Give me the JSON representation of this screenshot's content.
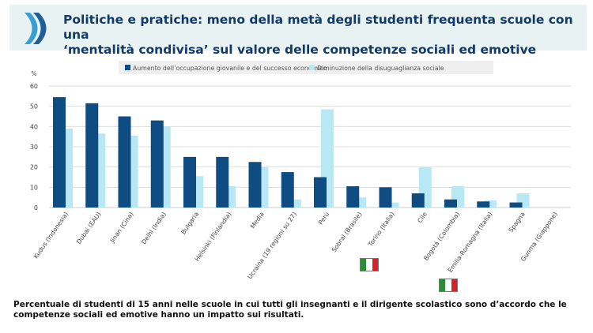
{
  "header": {
    "title_line1": "Politiche e pratiche: meno della metà degli studenti frequenta scuole con una",
    "title_line2": "‘mentalità condivisa’ sul valore delle competenze sociali ed emotive",
    "background_color": "#e9f2f2",
    "title_color": "#123a66"
  },
  "chart_data": {
    "type": "bar",
    "ylabel": "%",
    "ylim": [
      0,
      60
    ],
    "yticks": [
      0,
      10,
      20,
      30,
      40,
      50,
      60
    ],
    "grid": true,
    "legend_position": "top",
    "categories": [
      "Kudus (Indonesia)",
      "Dubai (EAU)",
      "Jinan (Cina)",
      "Delhi (India)",
      "Bulgaria",
      "Helsinki (Finlandia)",
      "Media",
      "Ucraina (19 regioni su 27)",
      "Perù",
      "Sobral (Brasile)",
      "Torino (Italia)",
      "Cile",
      "Bogotá (Colombia)",
      "Emilia-Romagna (Italia)",
      "Spagna",
      "Gunma (Giappone)"
    ],
    "series": [
      {
        "name": "Aumento dell’occupazione giovanile e del successo economico",
        "color": "#0f4c81",
        "values": [
          54.5,
          51.5,
          45.0,
          43.0,
          25.0,
          25.0,
          22.5,
          17.5,
          15.0,
          10.5,
          10.0,
          7.0,
          4.0,
          3.0,
          2.5,
          0
        ]
      },
      {
        "name": "Diminuzione della disuguaglianza sociale",
        "color": "#b8e7f5",
        "values": [
          39.0,
          36.5,
          35.5,
          40.0,
          15.5,
          10.5,
          20.0,
          4.0,
          48.5,
          5.0,
          2.5,
          20.0,
          10.5,
          3.5,
          7.0,
          0
        ]
      }
    ]
  },
  "footnote": "Percentuale di studenti di 15 anni nelle scuole in cui tutti gli insegnanti e il dirigente scolastico sono d’accordo che le competenze sociali ed emotive hanno un impatto sui risultati."
}
